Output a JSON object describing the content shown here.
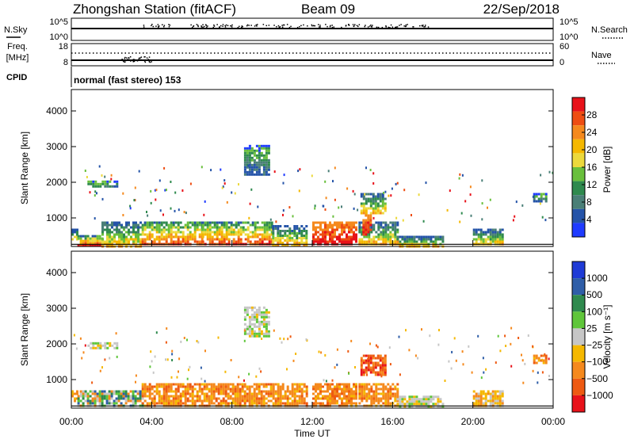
{
  "header": {
    "station": "Zhongshan Station (fitACF)",
    "beam": "Beam 09",
    "date": "22/Sep/2018"
  },
  "noise_panel": {
    "left_label": "N.Sky",
    "right_label": "N.Search",
    "left_ticks": [
      "10^5",
      "10^0"
    ],
    "right_ticks": [
      "10^5",
      "10^0"
    ]
  },
  "freq_panel": {
    "left_label_1": "Freq.",
    "left_label_2": "[MHz]",
    "right_label": "Nave",
    "left_ticks": [
      "18",
      "8"
    ],
    "right_ticks": [
      "60",
      "0"
    ]
  },
  "cpid": {
    "label": "CPID",
    "text": "normal (fast stereo) 153"
  },
  "x_axis": {
    "title": "Time UT",
    "ticks": [
      "00:00",
      "04:00",
      "08:00",
      "12:00",
      "16:00",
      "20:00",
      "00:00"
    ]
  },
  "panels": {
    "power": {
      "ylabel": "Slant Range [km]",
      "colorbar_title": "Power [dB]",
      "colorbar_ticks": [
        "28",
        "24",
        "20",
        "16",
        "12",
        "8",
        "4"
      ],
      "colorbar_colors": [
        "#e8121a",
        "#ee4d12",
        "#f5891d",
        "#f5b800",
        "#ecd93c",
        "#69bf3c",
        "#2f8a4e",
        "#4a7f77",
        "#2453a8",
        "#1f3bff"
      ]
    },
    "velocity": {
      "ylabel": "Slant Range [km]",
      "colorbar_title": "Velocity [m s⁻¹]",
      "colorbar_ticks": [
        "1000",
        "500",
        "100",
        "25",
        "−25",
        "−100",
        "−500",
        "−1000"
      ],
      "colorbar_colors": [
        "#1f3bd6",
        "#2f5ea8",
        "#2f8a4e",
        "#5fc63a",
        "#c6c6c6",
        "#f5b800",
        "#f5891d",
        "#ee5a12",
        "#e8121a"
      ]
    }
  },
  "chart_data": {
    "type": "heatmap",
    "x_unit": "hours UT",
    "xlim": [
      0,
      24
    ],
    "ylim": [
      200,
      4600
    ],
    "y_ticks": [
      1000,
      2000,
      3000,
      4000
    ],
    "power_regions": [
      {
        "t0": 0.0,
        "t1": 0.3,
        "r0": 380,
        "r1": 700,
        "level": "mid"
      },
      {
        "t0": 0.3,
        "t1": 1.5,
        "r0": 250,
        "r1": 520,
        "level": "high"
      },
      {
        "t0": 1.5,
        "t1": 3.5,
        "r0": 230,
        "r1": 900,
        "level": "mid"
      },
      {
        "t0": 3.5,
        "t1": 6.5,
        "r0": 240,
        "r1": 900,
        "level": "high"
      },
      {
        "t0": 6.5,
        "t1": 10.0,
        "r0": 260,
        "r1": 900,
        "level": "high"
      },
      {
        "t0": 10.0,
        "t1": 11.7,
        "r0": 260,
        "r1": 800,
        "level": "mid"
      },
      {
        "t0": 12.0,
        "t1": 14.2,
        "r0": 250,
        "r1": 900,
        "level": "max"
      },
      {
        "t0": 14.3,
        "t1": 16.2,
        "r0": 270,
        "r1": 900,
        "level": "mid"
      },
      {
        "t0": 16.2,
        "t1": 18.5,
        "r0": 230,
        "r1": 500,
        "level": "mid"
      },
      {
        "t0": 20.0,
        "t1": 21.5,
        "r0": 260,
        "r1": 700,
        "level": "mid"
      },
      {
        "t0": 0.8,
        "t1": 2.3,
        "r0": 1850,
        "r1": 2050,
        "level": "low"
      },
      {
        "t0": 8.6,
        "t1": 9.8,
        "r0": 2200,
        "r1": 3050,
        "level": "low"
      },
      {
        "t0": 14.4,
        "t1": 15.6,
        "r0": 1100,
        "r1": 1700,
        "level": "mid"
      },
      {
        "t0": 14.5,
        "t1": 14.9,
        "r0": 500,
        "r1": 1100,
        "level": "max"
      },
      {
        "t0": 23.0,
        "t1": 23.6,
        "r0": 1450,
        "r1": 1700,
        "level": "low"
      }
    ],
    "velocity_regions": [
      {
        "t0": 0.0,
        "t1": 0.3,
        "r0": 380,
        "r1": 700,
        "level": "neg-mid"
      },
      {
        "t0": 0.3,
        "t1": 3.5,
        "r0": 250,
        "r1": 700,
        "level": "pos-low"
      },
      {
        "t0": 3.5,
        "t1": 11.7,
        "r0": 250,
        "r1": 900,
        "level": "neg-mid"
      },
      {
        "t0": 12.0,
        "t1": 14.2,
        "r0": 250,
        "r1": 900,
        "level": "neg-mid"
      },
      {
        "t0": 14.3,
        "t1": 16.2,
        "r0": 270,
        "r1": 900,
        "level": "neg-mid"
      },
      {
        "t0": 16.2,
        "t1": 18.5,
        "r0": 230,
        "r1": 550,
        "level": "near-zero"
      },
      {
        "t0": 20.0,
        "t1": 21.5,
        "r0": 260,
        "r1": 700,
        "level": "neg-low"
      },
      {
        "t0": 0.8,
        "t1": 2.3,
        "r0": 1850,
        "r1": 2050,
        "level": "near-zero"
      },
      {
        "t0": 8.6,
        "t1": 9.8,
        "r0": 2200,
        "r1": 3050,
        "level": "near-zero"
      },
      {
        "t0": 14.4,
        "t1": 15.6,
        "r0": 1100,
        "r1": 1700,
        "level": "neg-high"
      },
      {
        "t0": 23.0,
        "t1": 23.6,
        "r0": 1450,
        "r1": 1700,
        "level": "neg-mid"
      }
    ]
  }
}
